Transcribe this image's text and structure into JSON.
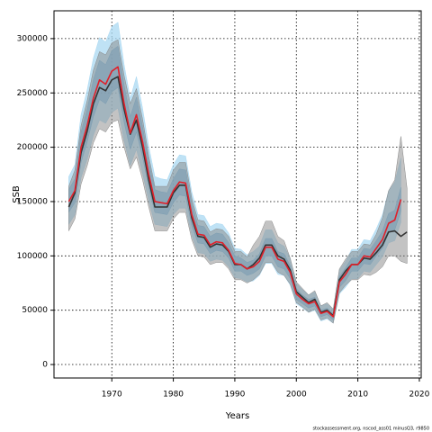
{
  "chart_data": {
    "type": "line",
    "xlabel": "Years",
    "ylabel": "SSB",
    "source": "stockassessment.org, nscod_ass01 minusQ3, r9850",
    "x": [
      1963,
      1964,
      1965,
      1966,
      1967,
      1968,
      1969,
      1970,
      1971,
      1972,
      1973,
      1974,
      1975,
      1976,
      1977,
      1978,
      1979,
      1980,
      1981,
      1982,
      1983,
      1984,
      1985,
      1986,
      1987,
      1988,
      1989,
      1990,
      1991,
      1992,
      1993,
      1994,
      1995,
      1996,
      1997,
      1998,
      1999,
      2000,
      2001,
      2002,
      2003,
      2004,
      2005,
      2006,
      2007,
      2008,
      2009,
      2010,
      2011,
      2012,
      2013,
      2014,
      2015,
      2016,
      2017,
      2018
    ],
    "xlim": [
      1960.6,
      2020.3
    ],
    "xticks": [
      1970,
      1980,
      1990,
      2000,
      2010,
      2020
    ],
    "ylim": [
      -12400,
      325600
    ],
    "yticks": [
      0,
      50000,
      100000,
      150000,
      200000,
      250000,
      300000
    ],
    "grid": true,
    "bands": [
      {
        "color": "#a9d8f2",
        "opacity": 0.75,
        "lower": [
          129000,
          138000,
          172000,
          189000,
          211000,
          225000,
          222000,
          232000,
          236000,
          206000,
          183000,
          198000,
          176000,
          151000,
          129000,
          128000,
          127000,
          138000,
          144000,
          144000,
          119000,
          103000,
          102000,
          95000,
          97000,
          96000,
          90000,
          80000,
          79000,
          76000,
          77000,
          82000,
          93000,
          93000,
          83000,
          82000,
          73000,
          56000,
          52000,
          48000,
          50000,
          40000,
          42000,
          38000,
          65000,
          71000,
          79000,
          79000,
          86000,
          85000,
          92000,
          99000,
          112000,
          114000,
          131000,
          null
        ],
        "upper": [
          173000,
          184000,
          230000,
          253000,
          282000,
          301000,
          297000,
          311000,
          315000,
          276000,
          245000,
          265000,
          236000,
          201000,
          173000,
          171000,
          170000,
          184000,
          193000,
          192000,
          159000,
          138000,
          137000,
          127000,
          130000,
          129000,
          121000,
          107000,
          106000,
          101000,
          104000,
          109000,
          124000,
          124000,
          112000,
          109000,
          98000,
          75000,
          69000,
          64000,
          67000,
          54000,
          56000,
          51000,
          87000,
          95000,
          106000,
          106000,
          115000,
          114000,
          125000,
          138000,
          160000,
          168000,
          190000,
          null
        ]
      },
      {
        "color": "#6fb3dc",
        "opacity": 0.6,
        "lower": [
          140000,
          149000,
          186000,
          205000,
          228000,
          244000,
          240000,
          251000,
          255000,
          223000,
          198000,
          214000,
          191000,
          163000,
          140000,
          139000,
          138000,
          149000,
          156000,
          155000,
          128000,
          112000,
          111000,
          102000,
          105000,
          104000,
          98000,
          86000,
          86000,
          82000,
          84000,
          88000,
          100000,
          100000,
          90000,
          88000,
          79000,
          60000,
          56000,
          52000,
          54000,
          44000,
          46000,
          41000,
          71000,
          77000,
          86000,
          86000,
          93000,
          92000,
          100000,
          107000,
          121000,
          124000,
          141000,
          null
        ],
        "upper": [
          161000,
          171000,
          214000,
          235000,
          262000,
          280000,
          276000,
          289000,
          293000,
          257000,
          228000,
          246000,
          219000,
          187000,
          161000,
          159000,
          158000,
          171000,
          180000,
          179000,
          148000,
          128000,
          127000,
          118000,
          121000,
          120000,
          112000,
          100000,
          98000,
          94000,
          96000,
          102000,
          116000,
          116000,
          104000,
          102000,
          91000,
          70000,
          64000,
          60000,
          62000,
          50000,
          52000,
          47000,
          81000,
          89000,
          98000,
          98000,
          107000,
          106000,
          114000,
          123000,
          139000,
          142000,
          163000,
          null
        ]
      },
      {
        "color": "#888888",
        "opacity": 0.5,
        "lower": [
          123000,
          134000,
          166000,
          183000,
          204000,
          217000,
          214000,
          223000,
          225000,
          200000,
          180000,
          191000,
          170000,
          145000,
          123000,
          123000,
          123000,
          134000,
          140000,
          140000,
          115000,
          100000,
          99000,
          92000,
          94000,
          94000,
          88000,
          78000,
          78000,
          75000,
          78000,
          83000,
          94000,
          94000,
          85000,
          82000,
          74000,
          57000,
          53000,
          48000,
          51000,
          41000,
          43000,
          38000,
          66000,
          73000,
          78000,
          78000,
          83000,
          82000,
          85000,
          90000,
          100000,
          100000,
          95000,
          93000
        ],
        "upper": [
          164000,
          179000,
          220000,
          243000,
          271000,
          288000,
          285000,
          296000,
          299000,
          266000,
          240000,
          254000,
          226000,
          192000,
          164000,
          164000,
          164000,
          179000,
          186000,
          186000,
          153000,
          133000,
          132000,
          122000,
          125000,
          124000,
          118000,
          104000,
          104000,
          99000,
          110000,
          118000,
          132000,
          132000,
          118000,
          114000,
          98000,
          76000,
          70000,
          64000,
          68000,
          54000,
          57000,
          51000,
          88000,
          97000,
          104000,
          104000,
          111000,
          110000,
          120000,
          135000,
          160000,
          170000,
          210000,
          162000
        ]
      }
    ],
    "series": [
      {
        "color": "#333333",
        "values": [
          145000,
          158000,
          195000,
          215000,
          240000,
          255000,
          252000,
          262000,
          265000,
          235000,
          212000,
          225000,
          200000,
          170000,
          145000,
          145000,
          145000,
          158000,
          165000,
          165000,
          135000,
          118000,
          117000,
          108000,
          111000,
          110000,
          104000,
          92000,
          92000,
          88000,
          92000,
          98000,
          110000,
          110000,
          100000,
          97000,
          87000,
          67000,
          62000,
          57000,
          60000,
          48000,
          50000,
          45000,
          78000,
          86000,
          92000,
          92000,
          98000,
          97000,
          103000,
          110000,
          122000,
          123000,
          118000,
          122000
        ]
      },
      {
        "color": "#e0202a",
        "values": [
          150000,
          160000,
          200000,
          220000,
          245000,
          262000,
          258000,
          270000,
          274000,
          240000,
          213000,
          230000,
          205000,
          175000,
          150000,
          149000,
          148000,
          160000,
          168000,
          167000,
          138000,
          120000,
          119000,
          110000,
          113000,
          112000,
          105000,
          93000,
          92000,
          88000,
          90000,
          95000,
          108000,
          108000,
          97000,
          95000,
          85000,
          65000,
          60000,
          56000,
          58000,
          47000,
          49000,
          44000,
          76000,
          83000,
          92000,
          92000,
          100000,
          99000,
          107000,
          115000,
          130000,
          133000,
          152000,
          null
        ]
      }
    ]
  }
}
